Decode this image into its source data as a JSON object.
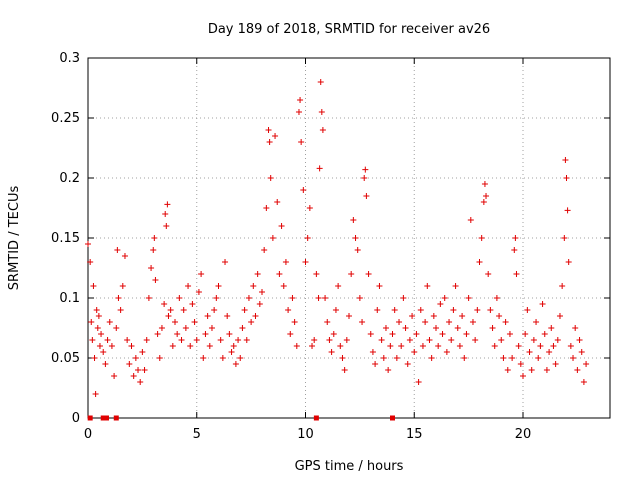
{
  "chart_data": {
    "type": "scatter",
    "title": "Day 189 of 2018, SRMTID for receiver av26",
    "xlabel": "GPS time / hours",
    "ylabel": "SRMTID / TECUs",
    "xlim": [
      0,
      24
    ],
    "ylim": [
      0,
      0.3
    ],
    "xticks": [
      0,
      5,
      10,
      15,
      20
    ],
    "xtick_labels": [
      "0",
      "5",
      "10",
      "15",
      "20"
    ],
    "yticks": [
      0,
      0.05,
      0.1,
      0.15,
      0.2,
      0.25,
      0.3
    ],
    "ytick_labels": [
      "0",
      "0.05",
      "0.1",
      "0.15",
      "0.2",
      "0.25",
      "0.3"
    ],
    "grid": true,
    "marker": "plus",
    "series": [
      {
        "name": "SRMTID",
        "color": "#e00000",
        "points": [
          [
            0.0,
            0.145
          ],
          [
            0.1,
            0.13
          ],
          [
            0.15,
            0.08
          ],
          [
            0.2,
            0.065
          ],
          [
            0.25,
            0.11
          ],
          [
            0.3,
            0.05
          ],
          [
            0.35,
            0.02
          ],
          [
            0.4,
            0.09
          ],
          [
            0.45,
            0.075
          ],
          [
            0.5,
            0.085
          ],
          [
            0.55,
            0.06
          ],
          [
            0.6,
            0.07
          ],
          [
            0.7,
            0.055
          ],
          [
            0.8,
            0.045
          ],
          [
            0.9,
            0.065
          ],
          [
            1.0,
            0.08
          ],
          [
            1.1,
            0.06
          ],
          [
            1.2,
            0.035
          ],
          [
            1.3,
            0.075
          ],
          [
            1.35,
            0.14
          ],
          [
            1.4,
            0.1
          ],
          [
            1.5,
            0.09
          ],
          [
            1.6,
            0.11
          ],
          [
            1.7,
            0.135
          ],
          [
            1.8,
            0.065
          ],
          [
            1.9,
            0.045
          ],
          [
            2.0,
            0.06
          ],
          [
            2.1,
            0.035
          ],
          [
            2.2,
            0.05
          ],
          [
            2.3,
            0.04
          ],
          [
            2.4,
            0.03
          ],
          [
            2.5,
            0.055
          ],
          [
            2.6,
            0.04
          ],
          [
            2.7,
            0.065
          ],
          [
            2.8,
            0.1
          ],
          [
            2.9,
            0.125
          ],
          [
            3.0,
            0.14
          ],
          [
            3.05,
            0.15
          ],
          [
            3.1,
            0.115
          ],
          [
            3.2,
            0.07
          ],
          [
            3.3,
            0.05
          ],
          [
            3.4,
            0.075
          ],
          [
            3.5,
            0.095
          ],
          [
            3.55,
            0.17
          ],
          [
            3.6,
            0.16
          ],
          [
            3.65,
            0.178
          ],
          [
            3.7,
            0.085
          ],
          [
            3.8,
            0.09
          ],
          [
            3.9,
            0.06
          ],
          [
            4.0,
            0.08
          ],
          [
            4.1,
            0.07
          ],
          [
            4.2,
            0.1
          ],
          [
            4.3,
            0.065
          ],
          [
            4.4,
            0.09
          ],
          [
            4.5,
            0.075
          ],
          [
            4.6,
            0.11
          ],
          [
            4.7,
            0.06
          ],
          [
            4.8,
            0.095
          ],
          [
            4.9,
            0.08
          ],
          [
            5.0,
            0.065
          ],
          [
            5.1,
            0.105
          ],
          [
            5.2,
            0.12
          ],
          [
            5.3,
            0.05
          ],
          [
            5.4,
            0.07
          ],
          [
            5.5,
            0.085
          ],
          [
            5.6,
            0.06
          ],
          [
            5.7,
            0.075
          ],
          [
            5.8,
            0.09
          ],
          [
            5.9,
            0.1
          ],
          [
            6.0,
            0.11
          ],
          [
            6.1,
            0.065
          ],
          [
            6.2,
            0.05
          ],
          [
            6.3,
            0.13
          ],
          [
            6.4,
            0.085
          ],
          [
            6.5,
            0.07
          ],
          [
            6.6,
            0.055
          ],
          [
            6.7,
            0.06
          ],
          [
            6.8,
            0.045
          ],
          [
            6.9,
            0.065
          ],
          [
            7.0,
            0.05
          ],
          [
            7.1,
            0.075
          ],
          [
            7.2,
            0.09
          ],
          [
            7.3,
            0.065
          ],
          [
            7.4,
            0.1
          ],
          [
            7.5,
            0.08
          ],
          [
            7.6,
            0.11
          ],
          [
            7.7,
            0.085
          ],
          [
            7.8,
            0.12
          ],
          [
            7.9,
            0.095
          ],
          [
            8.0,
            0.105
          ],
          [
            8.1,
            0.14
          ],
          [
            8.2,
            0.175
          ],
          [
            8.3,
            0.24
          ],
          [
            8.35,
            0.23
          ],
          [
            8.4,
            0.2
          ],
          [
            8.5,
            0.15
          ],
          [
            8.6,
            0.235
          ],
          [
            8.7,
            0.18
          ],
          [
            8.8,
            0.12
          ],
          [
            8.9,
            0.16
          ],
          [
            9.0,
            0.11
          ],
          [
            9.1,
            0.13
          ],
          [
            9.2,
            0.09
          ],
          [
            9.3,
            0.07
          ],
          [
            9.4,
            0.1
          ],
          [
            9.5,
            0.08
          ],
          [
            9.6,
            0.06
          ],
          [
            9.7,
            0.255
          ],
          [
            9.75,
            0.265
          ],
          [
            9.8,
            0.23
          ],
          [
            9.9,
            0.19
          ],
          [
            10.0,
            0.13
          ],
          [
            10.1,
            0.15
          ],
          [
            10.2,
            0.175
          ],
          [
            10.3,
            0.06
          ],
          [
            10.4,
            0.065
          ],
          [
            10.5,
            0.12
          ],
          [
            10.6,
            0.1
          ],
          [
            10.65,
            0.208
          ],
          [
            10.7,
            0.28
          ],
          [
            10.75,
            0.255
          ],
          [
            10.8,
            0.24
          ],
          [
            10.9,
            0.1
          ],
          [
            11.0,
            0.08
          ],
          [
            11.1,
            0.065
          ],
          [
            11.2,
            0.055
          ],
          [
            11.3,
            0.07
          ],
          [
            11.4,
            0.09
          ],
          [
            11.5,
            0.11
          ],
          [
            11.6,
            0.06
          ],
          [
            11.7,
            0.05
          ],
          [
            11.8,
            0.04
          ],
          [
            11.9,
            0.065
          ],
          [
            12.0,
            0.085
          ],
          [
            12.1,
            0.12
          ],
          [
            12.2,
            0.165
          ],
          [
            12.3,
            0.15
          ],
          [
            12.4,
            0.14
          ],
          [
            12.5,
            0.1
          ],
          [
            12.6,
            0.08
          ],
          [
            12.7,
            0.2
          ],
          [
            12.75,
            0.207
          ],
          [
            12.8,
            0.185
          ],
          [
            12.9,
            0.12
          ],
          [
            13.0,
            0.07
          ],
          [
            13.1,
            0.055
          ],
          [
            13.2,
            0.045
          ],
          [
            13.3,
            0.09
          ],
          [
            13.4,
            0.11
          ],
          [
            13.5,
            0.065
          ],
          [
            13.6,
            0.05
          ],
          [
            13.7,
            0.075
          ],
          [
            13.8,
            0.04
          ],
          [
            13.9,
            0.06
          ],
          [
            14.0,
            0.07
          ],
          [
            14.1,
            0.09
          ],
          [
            14.2,
            0.05
          ],
          [
            14.3,
            0.08
          ],
          [
            14.4,
            0.06
          ],
          [
            14.5,
            0.1
          ],
          [
            14.6,
            0.075
          ],
          [
            14.7,
            0.045
          ],
          [
            14.8,
            0.065
          ],
          [
            14.9,
            0.085
          ],
          [
            15.0,
            0.055
          ],
          [
            15.1,
            0.07
          ],
          [
            15.2,
            0.03
          ],
          [
            15.3,
            0.09
          ],
          [
            15.4,
            0.06
          ],
          [
            15.5,
            0.08
          ],
          [
            15.6,
            0.11
          ],
          [
            15.7,
            0.065
          ],
          [
            15.8,
            0.05
          ],
          [
            15.9,
            0.085
          ],
          [
            16.0,
            0.075
          ],
          [
            16.1,
            0.06
          ],
          [
            16.2,
            0.095
          ],
          [
            16.3,
            0.07
          ],
          [
            16.4,
            0.1
          ],
          [
            16.5,
            0.055
          ],
          [
            16.6,
            0.08
          ],
          [
            16.7,
            0.065
          ],
          [
            16.8,
            0.09
          ],
          [
            16.9,
            0.11
          ],
          [
            17.0,
            0.075
          ],
          [
            17.1,
            0.06
          ],
          [
            17.2,
            0.085
          ],
          [
            17.3,
            0.05
          ],
          [
            17.4,
            0.07
          ],
          [
            17.5,
            0.1
          ],
          [
            17.6,
            0.165
          ],
          [
            17.7,
            0.08
          ],
          [
            17.8,
            0.065
          ],
          [
            17.9,
            0.09
          ],
          [
            18.0,
            0.13
          ],
          [
            18.1,
            0.15
          ],
          [
            18.2,
            0.18
          ],
          [
            18.25,
            0.195
          ],
          [
            18.3,
            0.185
          ],
          [
            18.4,
            0.12
          ],
          [
            18.5,
            0.09
          ],
          [
            18.6,
            0.075
          ],
          [
            18.7,
            0.06
          ],
          [
            18.8,
            0.1
          ],
          [
            18.9,
            0.085
          ],
          [
            19.0,
            0.065
          ],
          [
            19.1,
            0.05
          ],
          [
            19.2,
            0.08
          ],
          [
            19.3,
            0.04
          ],
          [
            19.4,
            0.07
          ],
          [
            19.5,
            0.05
          ],
          [
            19.6,
            0.14
          ],
          [
            19.65,
            0.15
          ],
          [
            19.7,
            0.12
          ],
          [
            19.8,
            0.06
          ],
          [
            19.9,
            0.045
          ],
          [
            20.0,
            0.035
          ],
          [
            20.1,
            0.07
          ],
          [
            20.2,
            0.09
          ],
          [
            20.3,
            0.055
          ],
          [
            20.4,
            0.04
          ],
          [
            20.5,
            0.065
          ],
          [
            20.6,
            0.08
          ],
          [
            20.7,
            0.05
          ],
          [
            20.8,
            0.06
          ],
          [
            20.9,
            0.095
          ],
          [
            21.0,
            0.07
          ],
          [
            21.1,
            0.04
          ],
          [
            21.2,
            0.055
          ],
          [
            21.3,
            0.075
          ],
          [
            21.4,
            0.06
          ],
          [
            21.5,
            0.045
          ],
          [
            21.6,
            0.065
          ],
          [
            21.7,
            0.085
          ],
          [
            21.8,
            0.11
          ],
          [
            21.9,
            0.15
          ],
          [
            21.95,
            0.215
          ],
          [
            22.0,
            0.2
          ],
          [
            22.05,
            0.173
          ],
          [
            22.1,
            0.13
          ],
          [
            22.2,
            0.06
          ],
          [
            22.3,
            0.05
          ],
          [
            22.4,
            0.075
          ],
          [
            22.5,
            0.04
          ],
          [
            22.6,
            0.065
          ],
          [
            22.7,
            0.055
          ],
          [
            22.8,
            0.03
          ],
          [
            22.9,
            0.045
          ]
        ]
      }
    ],
    "zero_markers": [
      0.1,
      0.7,
      0.85,
      1.3,
      10.5,
      14.0
    ]
  }
}
